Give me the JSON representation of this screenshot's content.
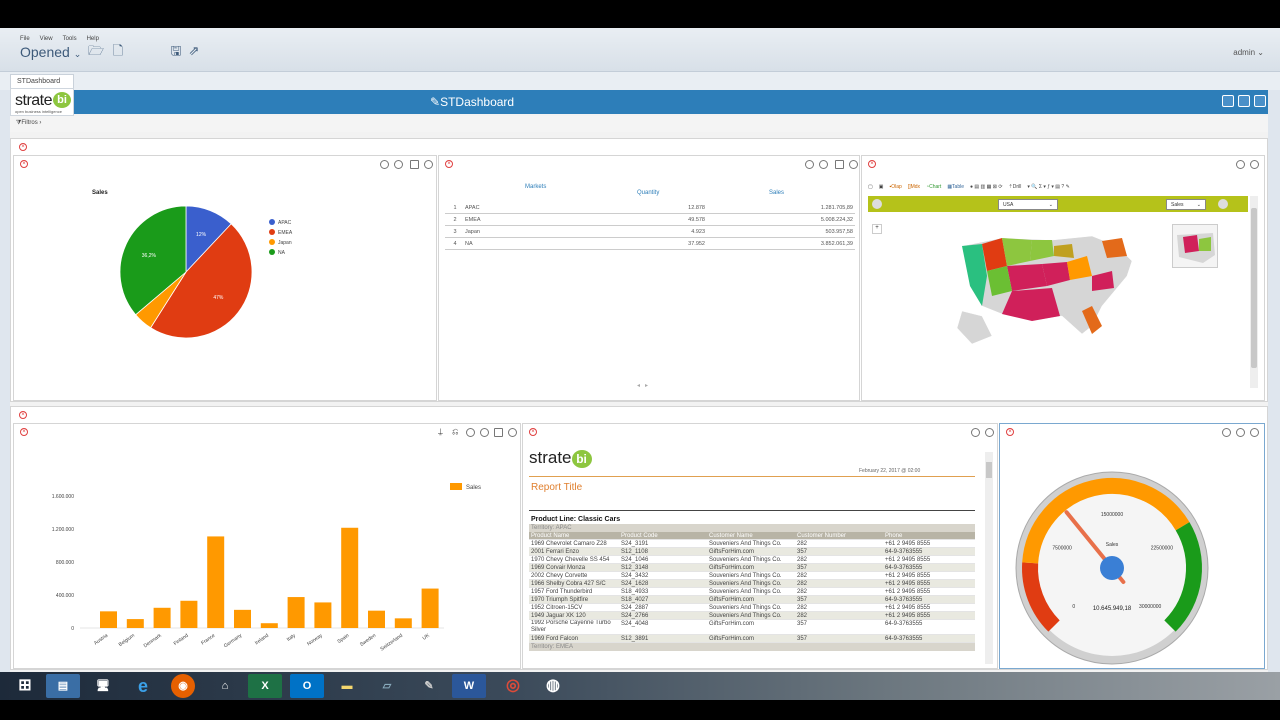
{
  "menubar": {
    "menus": [
      "File",
      "View",
      "Tools",
      "Help"
    ],
    "opened_label": "Opened",
    "user": "admin"
  },
  "tabs": [
    {
      "label": "STDashboard"
    }
  ],
  "header": {
    "logo_main": "strate",
    "logo_bi": "bi",
    "logo_sub": "open business intelligence",
    "title": "STDashboard"
  },
  "filters_label": "Filtros",
  "pie": {
    "title": "Sales",
    "legend": [
      "APAC",
      "EMEA",
      "Japan",
      "NA"
    ],
    "colors": [
      "#3a5fcd",
      "#e03c12",
      "#ff9900",
      "#1a9b1a"
    ]
  },
  "table": {
    "headers": [
      "Markets",
      "Quantity",
      "Sales"
    ],
    "rows": [
      {
        "idx": "1",
        "market": "APAC",
        "qty": "12.878",
        "sales": "1.281.705,89"
      },
      {
        "idx": "2",
        "market": "EMEA",
        "qty": "49.578",
        "sales": "5.008.224,32"
      },
      {
        "idx": "3",
        "market": "Japan",
        "qty": "4.923",
        "sales": "503.957,58"
      },
      {
        "idx": "4",
        "market": "NA",
        "qty": "37.952",
        "sales": "3.852.061,39"
      }
    ]
  },
  "map": {
    "toolbar": [
      "Olap",
      "Mdx",
      "Chart",
      "Table",
      "Drill"
    ],
    "country_select": "USA",
    "measure_select": "Sales"
  },
  "bar": {
    "legend": "Sales",
    "color": "#ff9900"
  },
  "report": {
    "date": "February 22, 2017 @ 02:00",
    "title": "Report Title",
    "product_line": "Product Line: Classic Cars",
    "territory1": "Territory: APAC",
    "territory2": "Territory: EMEA",
    "headers": [
      "Product Name",
      "Product Code",
      "Customer Name",
      "Customer Number",
      "Phone"
    ],
    "rows": [
      [
        "1969 Chevrolet Camaro Z28",
        "S24_3191",
        "Souveniers And Things Co.",
        "282",
        "+61 2 9495 8555"
      ],
      [
        "2001 Ferrari Enzo",
        "S12_1108",
        "GiftsForHim.com",
        "357",
        "64-9-3763555"
      ],
      [
        "1970 Chevy Chevelle SS 454",
        "S24_1046",
        "Souveniers And Things Co.",
        "282",
        "+61 2 9495 8555"
      ],
      [
        "1969 Corvair Monza",
        "S12_3148",
        "GiftsForHim.com",
        "357",
        "64-9-3763555"
      ],
      [
        "2002 Chevy Corvette",
        "S24_3432",
        "Souveniers And Things Co.",
        "282",
        "+61 2 9495 8555"
      ],
      [
        "1966 Shelby Cobra 427 S/C",
        "S24_1628",
        "Souveniers And Things Co.",
        "282",
        "+61 2 9495 8555"
      ],
      [
        "1957 Ford Thunderbird",
        "S18_4933",
        "Souveniers And Things Co.",
        "282",
        "+61 2 9495 8555"
      ],
      [
        "1970 Triumph Spitfire",
        "S18_4027",
        "GiftsForHim.com",
        "357",
        "64-9-3763555"
      ],
      [
        "1952 Citroen-15CV",
        "S24_2887",
        "Souveniers And Things Co.",
        "282",
        "+61 2 9495 8555"
      ],
      [
        "1949 Jaguar XK 120",
        "S24_2766",
        "Souveniers And Things Co.",
        "282",
        "+61 2 9495 8555"
      ],
      [
        "1992 Porsche Cayenne Turbo Silver",
        "S24_4048",
        "GiftsForHim.com",
        "357",
        "64-9-3763555"
      ],
      [
        "1969 Ford Falcon",
        "S12_3891",
        "GiftsForHim.com",
        "357",
        "64-9-3763555"
      ]
    ]
  },
  "gauge": {
    "ticks": [
      "0",
      "7500000",
      "15000000",
      "22500000",
      "30000000"
    ],
    "label": "Sales",
    "value": "10.645.949,18",
    "value_number": 10645949.18,
    "max": 30000000
  },
  "chart_data": [
    {
      "type": "pie",
      "title": "Sales",
      "categories": [
        "APAC",
        "EMEA",
        "Japan",
        "NA"
      ],
      "values": [
        12,
        47,
        4.8,
        36.2
      ],
      "labels": [
        "12%",
        "47%",
        "",
        "36,2%"
      ]
    },
    {
      "type": "bar",
      "categories": [
        "Austria",
        "Belgium",
        "Denmark",
        "Finland",
        "France",
        "Germany",
        "Ireland",
        "Italy",
        "Norway",
        "Spain",
        "Sweden",
        "Switzerland",
        "UK"
      ],
      "series": [
        {
          "name": "Sales",
          "values": [
            202000,
            108000,
            245000,
            330000,
            1110000,
            220000,
            58000,
            375000,
            310000,
            1215000,
            210000,
            117000,
            478000
          ]
        }
      ],
      "yticks": [
        "0",
        "400.000",
        "800.000",
        "1.200.000",
        "1.600.000"
      ],
      "ylim": [
        0,
        1600000
      ]
    }
  ]
}
